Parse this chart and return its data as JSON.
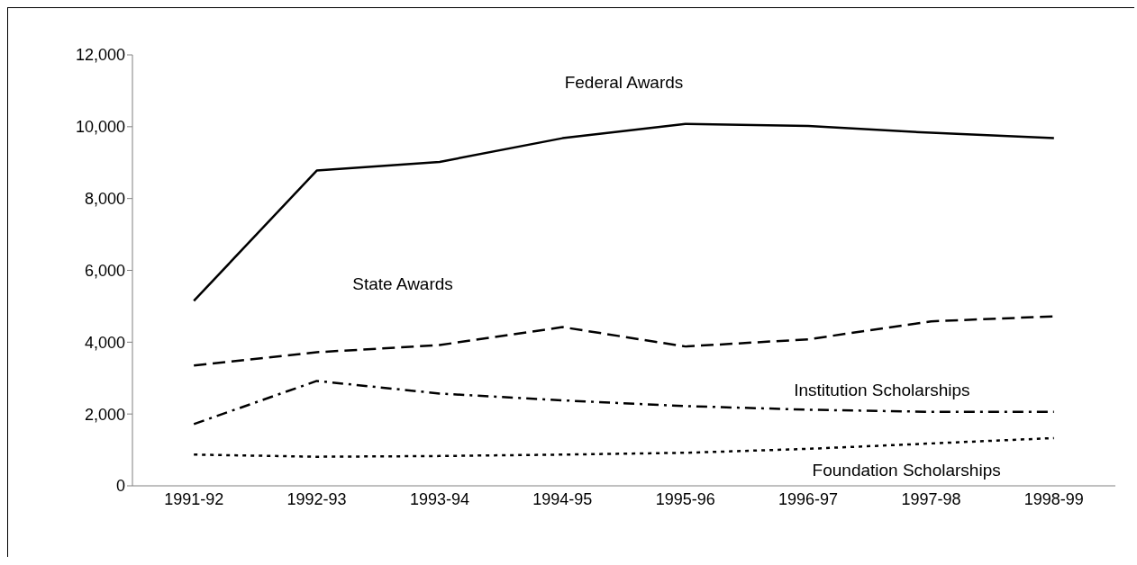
{
  "chart_data": {
    "type": "line",
    "categories": [
      "1991-92",
      "1992-93",
      "1993-94",
      "1994-95",
      "1995-96",
      "1996-97",
      "1997-98",
      "1998-99"
    ],
    "series": [
      {
        "name": "Federal Awards",
        "color": "#000000",
        "line_style": "solid",
        "values": [
          5150,
          8780,
          9020,
          9680,
          10080,
          10020,
          9830,
          9680
        ]
      },
      {
        "name": "State Awards",
        "color": "#000000",
        "line_style": "dashed",
        "values": [
          3350,
          3720,
          3920,
          4420,
          3880,
          4080,
          4580,
          4720
        ]
      },
      {
        "name": "Institution Scholarships",
        "color": "#000000",
        "line_style": "dashdot",
        "values": [
          1720,
          2920,
          2570,
          2380,
          2220,
          2120,
          2060,
          2060
        ]
      },
      {
        "name": "Foundation Scholarships",
        "color": "#000000",
        "line_style": "dotted",
        "values": [
          870,
          810,
          830,
          870,
          920,
          1030,
          1180,
          1330
        ]
      }
    ],
    "ylim": [
      0,
      12000
    ],
    "yticks": [
      0,
      {
        "value": 2000,
        "label": "2,000"
      },
      {
        "value": 4000,
        "label": "4,000"
      },
      {
        "value": 6000,
        "label": "6,000"
      },
      {
        "value": 8000,
        "label": "8,000"
      },
      {
        "value": 10000,
        "label": "10,000"
      },
      {
        "value": 12000,
        "label": "12,000"
      }
    ],
    "grid": false,
    "legend": false,
    "marker": "none"
  }
}
